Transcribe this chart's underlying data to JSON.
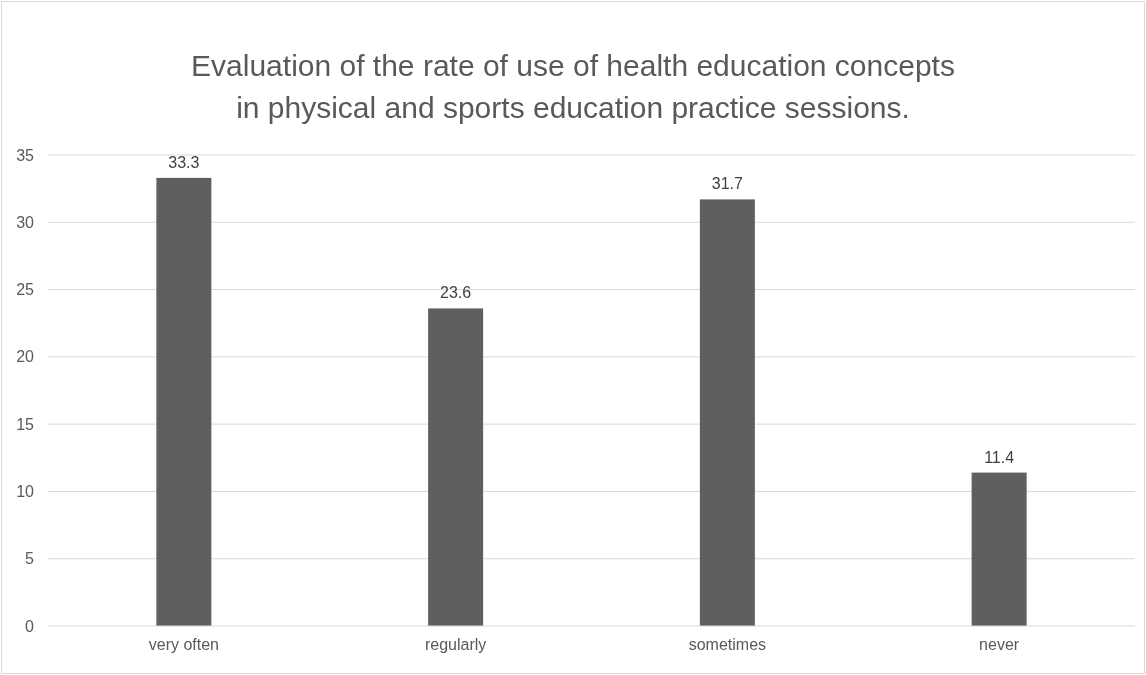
{
  "chart_data": {
    "type": "bar",
    "title": "Evaluation of the rate of use of health education concepts in physical and sports education practice sessions.",
    "categories": [
      "very often",
      "regularly",
      "sometimes",
      "never"
    ],
    "values": [
      33.3,
      23.6,
      31.7,
      11.4
    ],
    "color": "#5f5f5f",
    "ylim": [
      0,
      35
    ],
    "yticks": [
      0,
      5,
      10,
      15,
      20,
      25,
      30,
      35
    ],
    "grid": "y",
    "data_labels": true
  }
}
